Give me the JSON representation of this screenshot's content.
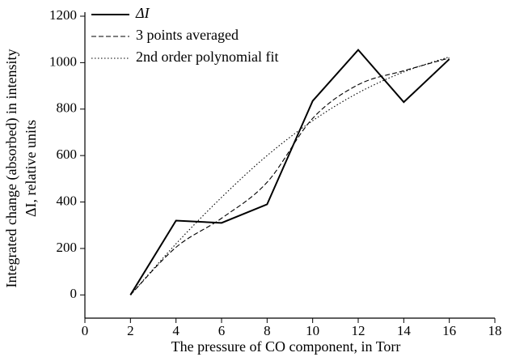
{
  "chart_data": {
    "type": "line",
    "x_label": "The pressure of CO component, in Torr",
    "y_label": [
      "Integrated change (absorbed) in intensity",
      "ΔI, relative units"
    ],
    "x": [
      2,
      4,
      6,
      8,
      10,
      12,
      14,
      16
    ],
    "series": [
      {
        "name": "ΔI",
        "color": "#000000",
        "dash": "solid",
        "values": [
          0,
          320,
          310,
          390,
          835,
          1055,
          830,
          1015
        ]
      },
      {
        "name": "3 points averaged",
        "color": "#000000",
        "dash": "dashed",
        "values": [
          0,
          205,
          330,
          485,
          760,
          905,
          965,
          1020
        ]
      },
      {
        "name": "2nd order polynomial fit",
        "color": "#000000",
        "dash": "dotted",
        "values": [
          0,
          220,
          420,
          600,
          750,
          870,
          960,
          1025
        ]
      }
    ],
    "xlim": [
      0,
      18
    ],
    "xticks": [
      0,
      2,
      4,
      6,
      8,
      10,
      12,
      14,
      16,
      18
    ],
    "ylim": [
      -100,
      1200
    ],
    "yticks": [
      0,
      200,
      400,
      600,
      800,
      1000,
      1200
    ],
    "legend": "upper left",
    "grid": false
  }
}
